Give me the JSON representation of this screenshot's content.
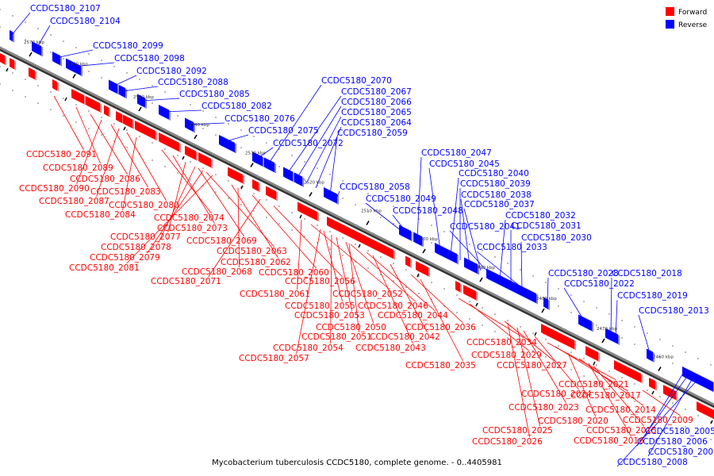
{
  "caption": "Mycobacterium tuberculosis CCDC5180, complete genome. - 0..4405981",
  "legend": [
    {
      "label": "Forward",
      "color": "#ff0000"
    },
    {
      "label": "Reverse",
      "color": "#0000ff"
    }
  ],
  "colors": {
    "forward": "#ff0000",
    "reverse": "#0000ff",
    "backbone": "#888888"
  },
  "ticks": [
    "2570 kbp",
    "2560 kbp",
    "2550 kbp",
    "2540 kbp",
    "2530 kbp",
    "2520 kbp",
    "2510 kbp",
    "2500 kbp",
    "2490 kbp",
    "2480 kbp",
    "2470 kbp",
    "2460 kbp"
  ],
  "genes_reverse": [
    "CCDC5180_2107",
    "CCDC5180_2104",
    "CCDC5180_2099",
    "CCDC5180_2098",
    "CCDC5180_2092",
    "CCDC5180_2088",
    "CCDC5180_2085",
    "CCDC5180_2082",
    "CCDC5180_2076",
    "CCDC5180_2075",
    "CCDC5180_2072",
    "CCDC5180_2070",
    "CCDC5180_2067",
    "CCDC5180_2066",
    "CCDC5180_2065",
    "CCDC5180_2064",
    "CCDC5180_2059",
    "CCDC5180_2058",
    "CCDC5180_2049",
    "CCDC5180_2048",
    "CCDC5180_2047",
    "CCDC5180_2045",
    "CCDC5180_2040",
    "CCDC5180_2039",
    "CCDC5180_2038",
    "CCDC5180_2037",
    "CCDC5180_2041",
    "CCDC5180_2032",
    "CCDC5180_2031",
    "CCDC5180_2030",
    "CCDC5180_2033",
    "CCDC5180_2028",
    "CCDC5180_2022",
    "CCDC5180_2018",
    "CCDC5180_2019",
    "CCDC5180_2013",
    "CCDC5180_2005",
    "CCDC5180_2006",
    "CCDC5180_2007",
    "CCDC5180_2008"
  ],
  "genes_forward": [
    "CCDC5180_2091",
    "CCDC5180_2089",
    "CCDC5180_2086",
    "CCDC5180_2090",
    "CCDC5180_2083",
    "CCDC5180_2087",
    "CCDC5180_2080",
    "CCDC5180_2084",
    "CCDC5180_2074",
    "CCDC5180_2073",
    "CCDC5180_2077",
    "CCDC5180_2069",
    "CCDC5180_2078",
    "CCDC5180_2063",
    "CCDC5180_2079",
    "CCDC5180_2062",
    "CCDC5180_2081",
    "CCDC5180_2068",
    "CCDC5180_2060",
    "CCDC5180_2071",
    "CCDC5180_2056",
    "CCDC5180_2061",
    "CCDC5180_2052",
    "CCDC5180_2055",
    "CCDC5180_2046",
    "CCDC5180_2053",
    "CCDC5180_2044",
    "CCDC5180_2050",
    "CCDC5180_2036",
    "CCDC5180_2051",
    "CCDC5180_2042",
    "CCDC5180_2054",
    "CCDC5180_2043",
    "CCDC5180_2034",
    "CCDC5180_2057",
    "CCDC5180_2029",
    "CCDC5180_2035",
    "CCDC5180_2027",
    "CCDC5180_2021",
    "CCDC5180_2024",
    "CCDC5180_2017",
    "CCDC5180_2023",
    "CCDC5180_2014",
    "CCDC5180_2020",
    "CCDC5180_2009",
    "CCDC5180_2015",
    "CCDC5180_2025",
    "CCDC5180_2016",
    "CCDC5180_2026"
  ]
}
